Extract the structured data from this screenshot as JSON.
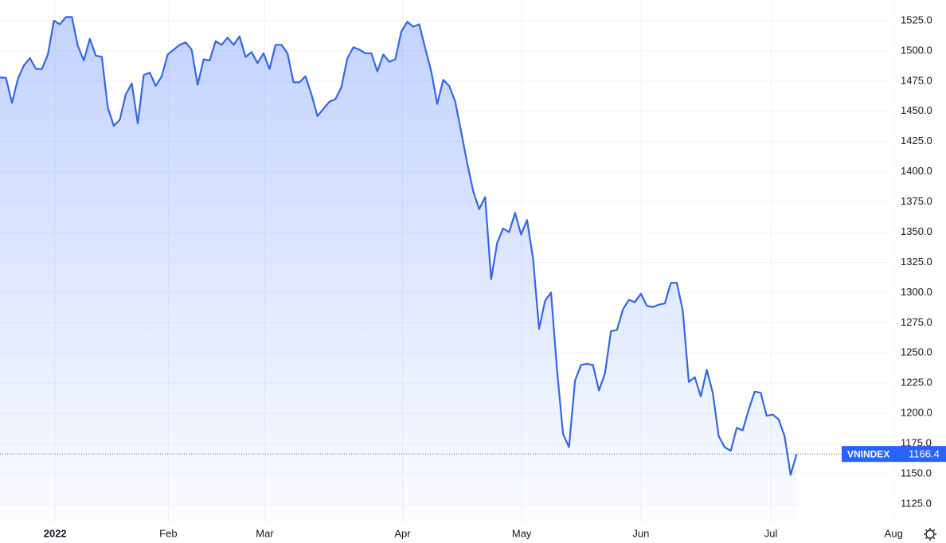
{
  "chart_data": {
    "type": "area",
    "x": [
      0,
      1,
      2,
      3,
      4,
      5,
      6,
      7,
      8,
      9,
      10,
      11,
      12,
      13,
      14,
      15,
      16,
      17,
      18,
      19,
      20,
      21,
      22,
      23,
      24,
      25,
      26,
      27,
      28,
      29,
      30,
      31,
      32,
      33,
      34,
      35,
      36,
      37,
      38,
      39,
      40,
      41,
      42,
      43,
      44,
      45,
      46,
      47,
      48,
      49,
      50,
      51,
      52,
      53,
      54,
      55,
      56,
      57,
      58,
      59,
      60,
      61,
      62,
      63,
      64,
      65,
      66,
      67,
      68,
      69,
      70,
      71,
      72,
      73,
      74,
      75,
      76,
      77,
      78,
      79,
      80,
      81,
      82,
      83,
      84,
      85,
      86,
      87,
      88,
      89,
      90,
      91,
      92,
      93,
      94,
      95,
      96,
      97,
      98,
      99,
      100,
      101,
      102,
      103,
      104,
      105,
      106,
      107,
      108,
      109,
      110,
      111,
      112,
      113,
      114,
      115,
      116,
      117,
      118,
      119,
      120,
      121,
      122,
      123,
      124,
      125,
      126,
      127,
      128,
      129,
      130,
      131,
      132,
      133
    ],
    "series": [
      {
        "name": "VNINDEX",
        "color": "#3366e6",
        "values": [
          1478,
          1477.6,
          1457,
          1477,
          1488,
          1494,
          1485,
          1485,
          1497,
          1525,
          1522,
          1528,
          1528,
          1504,
          1492,
          1510,
          1496,
          1495,
          1453,
          1438,
          1443,
          1464,
          1473,
          1440,
          1480,
          1482,
          1471,
          1479,
          1497,
          1501,
          1505,
          1507,
          1501,
          1472,
          1493,
          1492,
          1508,
          1505,
          1511,
          1505,
          1512,
          1495,
          1499,
          1490,
          1498,
          1485,
          1505,
          1505,
          1498,
          1474,
          1474,
          1479,
          1464,
          1446,
          1452,
          1458,
          1460,
          1470,
          1494,
          1503,
          1501,
          1498,
          1498,
          1483,
          1497,
          1491,
          1493,
          1516,
          1524,
          1520,
          1522,
          1502,
          1483,
          1456,
          1476,
          1471,
          1458,
          1433,
          1407,
          1384,
          1369,
          1379,
          1311,
          1341,
          1353,
          1350,
          1366,
          1348,
          1360,
          1328,
          1270,
          1293,
          1300,
          1236,
          1183,
          1172,
          1227,
          1240,
          1241,
          1240,
          1219,
          1233,
          1268,
          1269,
          1286,
          1294,
          1292,
          1299,
          1289,
          1288,
          1290,
          1291,
          1308,
          1308,
          1285,
          1226,
          1230,
          1214,
          1236,
          1217,
          1181,
          1172,
          1169,
          1188,
          1186,
          1203,
          1218,
          1217,
          1198,
          1199,
          1195,
          1181,
          1149,
          1166.4
        ]
      }
    ],
    "xlim": [
      0,
      148.9
    ],
    "xticks": [
      {
        "value": 9.2,
        "label": "2022"
      },
      {
        "value": 28.1,
        "label": "Feb"
      },
      {
        "value": 44.2,
        "label": "Mar"
      },
      {
        "value": 67.2,
        "label": "Apr"
      },
      {
        "value": 87.1,
        "label": "May"
      },
      {
        "value": 107,
        "label": "Jun"
      },
      {
        "value": 128.7,
        "label": "Jul"
      },
      {
        "value": 149.2,
        "label": "Aug"
      }
    ],
    "ylim": [
      1110.5,
      1542.1
    ],
    "yticks": [
      {
        "value": 1125,
        "label": "1125.0"
      },
      {
        "value": 1150,
        "label": "1150.0"
      },
      {
        "value": 1175,
        "label": "1175.0"
      },
      {
        "value": 1200,
        "label": "1200.0"
      },
      {
        "value": 1225,
        "label": "1225.0"
      },
      {
        "value": 1250,
        "label": "1250.0"
      },
      {
        "value": 1275,
        "label": "1275.0"
      },
      {
        "value": 1300,
        "label": "1300.0"
      },
      {
        "value": 1325,
        "label": "1325.0"
      },
      {
        "value": 1350,
        "label": "1350.0"
      },
      {
        "value": 1375,
        "label": "1375.0"
      },
      {
        "value": 1400,
        "label": "1400.0"
      },
      {
        "value": 1425,
        "label": "1425.0"
      },
      {
        "value": 1450,
        "label": "1450.0"
      },
      {
        "value": 1475,
        "label": "1475.0"
      },
      {
        "value": 1500,
        "label": "1500.0"
      },
      {
        "value": 1525,
        "label": "1525.0"
      }
    ],
    "grid": true,
    "last_price": {
      "name": "VNINDEX",
      "value": 1166.4
    }
  }
}
